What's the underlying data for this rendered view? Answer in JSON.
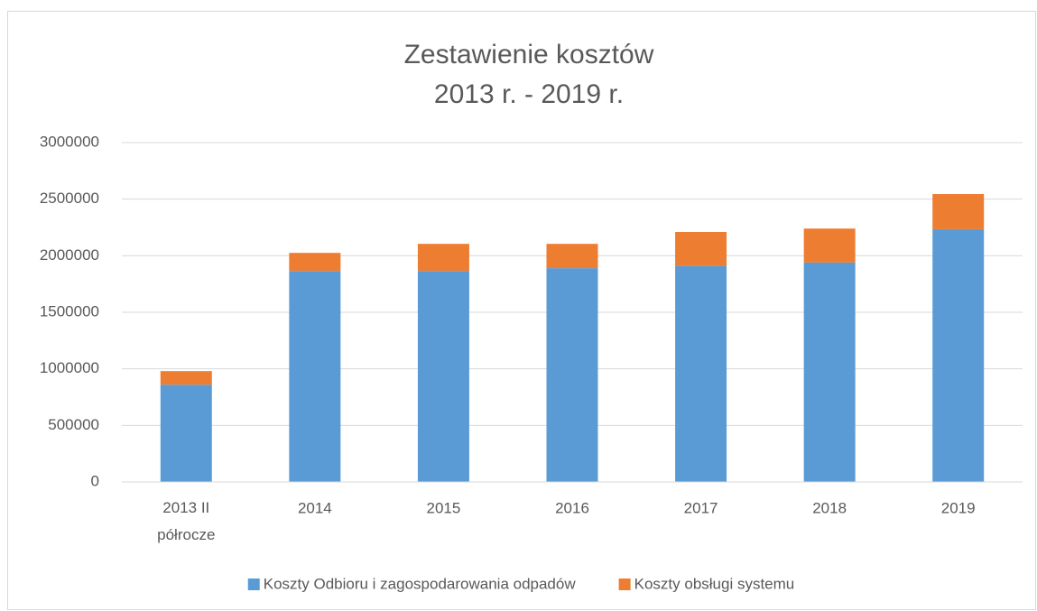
{
  "chart_data": {
    "type": "stacked_bar",
    "title": "Zestawienie kosztów",
    "subtitle": "2013 r. - 2019 r.",
    "categories": [
      "2013 II półrocze",
      "2014",
      "2015",
      "2016",
      "2017",
      "2018",
      "2019"
    ],
    "series": [
      {
        "name": "Koszty Odbioru i zagospodarowania odpadów",
        "color": "#5b9bd5",
        "values": [
          860000,
          1865000,
          1865000,
          1890000,
          1910000,
          1940000,
          2235000
        ]
      },
      {
        "name": "Koszty obsługi systemu",
        "color": "#ed7d31",
        "values": [
          120000,
          160000,
          240000,
          215000,
          300000,
          300000,
          310000
        ]
      }
    ],
    "ylim": [
      0,
      3000000
    ],
    "yticks": [
      0,
      500000,
      1000000,
      1500000,
      2000000,
      2500000,
      3000000
    ],
    "grid": true,
    "legend": "bottom"
  }
}
